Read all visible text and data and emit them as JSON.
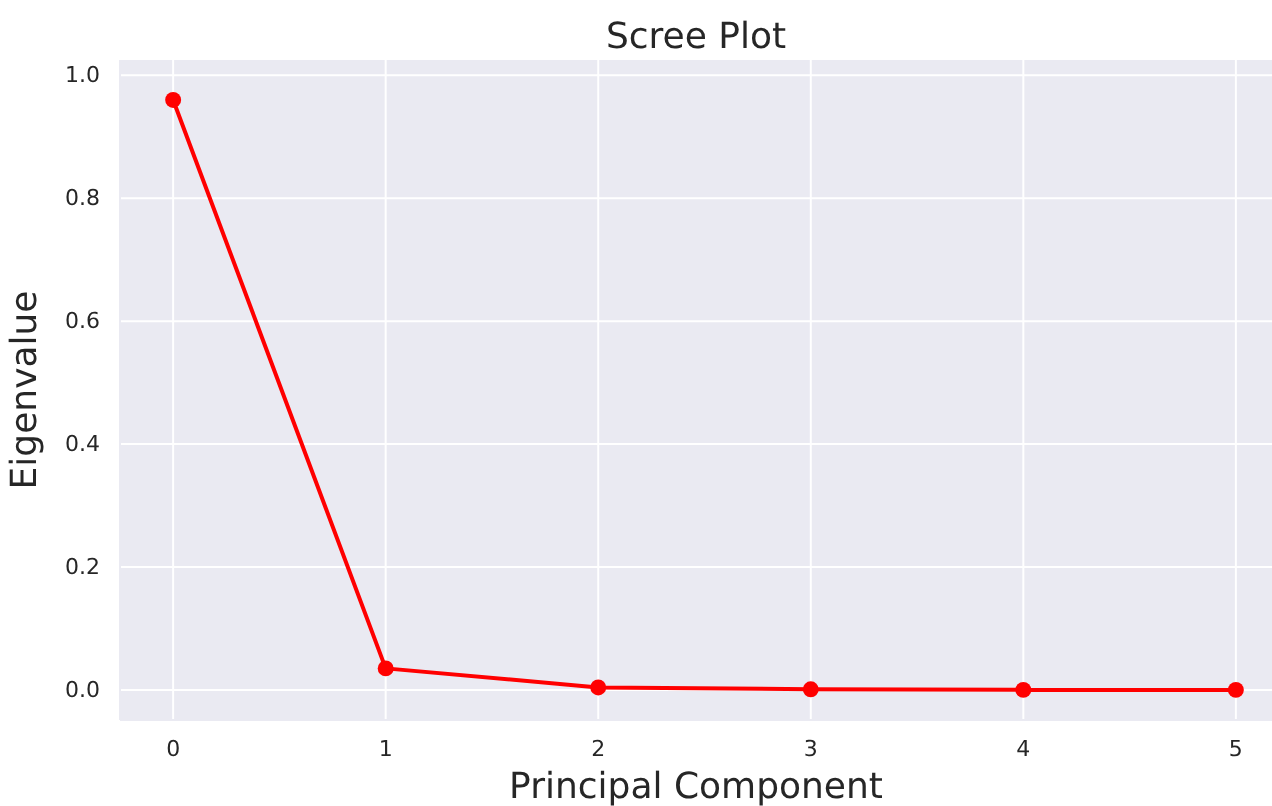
{
  "chart_data": {
    "type": "line",
    "title": "Scree Plot",
    "xlabel": "Principal Component",
    "ylabel": "Eigenvalue",
    "x": [
      0,
      1,
      2,
      3,
      4,
      5
    ],
    "series": [
      {
        "color": "#ff0000",
        "values": [
          0.96,
          0.035,
          0.004,
          0.001,
          0,
          0
        ]
      }
    ],
    "xlim": [
      -0.25,
      5.17
    ],
    "xticks": [
      0,
      1,
      2,
      3,
      4,
      5
    ],
    "ylim": [
      -0.049,
      1.025
    ],
    "yticks": [
      {
        "value": 0,
        "label": "0.0"
      },
      {
        "value": 0.2,
        "label": "0.2"
      },
      {
        "value": 0.4,
        "label": "0.4"
      },
      {
        "value": 0.6,
        "label": "0.6"
      },
      {
        "value": 0.8,
        "label": "0.8"
      },
      {
        "value": 1,
        "label": "1.0"
      }
    ],
    "grid": true,
    "marker": "circle",
    "line_style": "solid"
  }
}
